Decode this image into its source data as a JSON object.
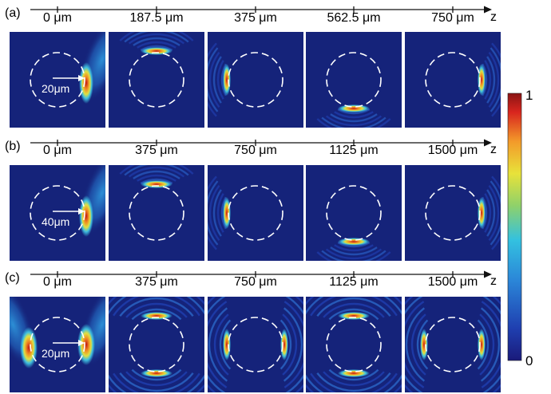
{
  "rows": [
    {
      "label": "(a)",
      "axis_label": "z",
      "distances": [
        "0 μm",
        "187.5 μm",
        "375 μm",
        "562.5 μm",
        "750 μm"
      ],
      "scale_label": "20μm",
      "panels": [
        {
          "field": "source",
          "side": "right"
        },
        {
          "field": "ring",
          "side": "top",
          "lobes": 1
        },
        {
          "field": "ring",
          "side": "left",
          "lobes": 1
        },
        {
          "field": "ring",
          "side": "bottom",
          "lobes": 1
        },
        {
          "field": "ring",
          "side": "right",
          "lobes": 1
        }
      ]
    },
    {
      "label": "(b)",
      "axis_label": "z",
      "distances": [
        "0 μm",
        "375 μm",
        "750 μm",
        "1125 μm",
        "1500 μm"
      ],
      "scale_label": "40μm",
      "panels": [
        {
          "field": "source",
          "side": "right"
        },
        {
          "field": "ring",
          "side": "top",
          "lobes": 1
        },
        {
          "field": "ring",
          "side": "left",
          "lobes": 1
        },
        {
          "field": "ring",
          "side": "bottom",
          "lobes": 1
        },
        {
          "field": "ring",
          "side": "right",
          "lobes": 1
        }
      ]
    },
    {
      "label": "(c)",
      "axis_label": "z",
      "distances": [
        "0 μm",
        "375 μm",
        "750 μm",
        "1125 μm",
        "1500 μm"
      ],
      "scale_label": "20μm",
      "panels": [
        {
          "field": "source2",
          "side": "left"
        },
        {
          "field": "ring",
          "side": "top",
          "lobes": 2
        },
        {
          "field": "ring",
          "side": "left",
          "lobes": 2
        },
        {
          "field": "ring",
          "side": "top",
          "lobes": 2
        },
        {
          "field": "ring",
          "side": "left",
          "lobes": 2
        }
      ]
    }
  ],
  "colorbar": {
    "max_label": "1",
    "min_label": "0"
  },
  "colors": {
    "background": "#15237a",
    "ring_dash": "#ffffff",
    "axis": "#111111"
  }
}
